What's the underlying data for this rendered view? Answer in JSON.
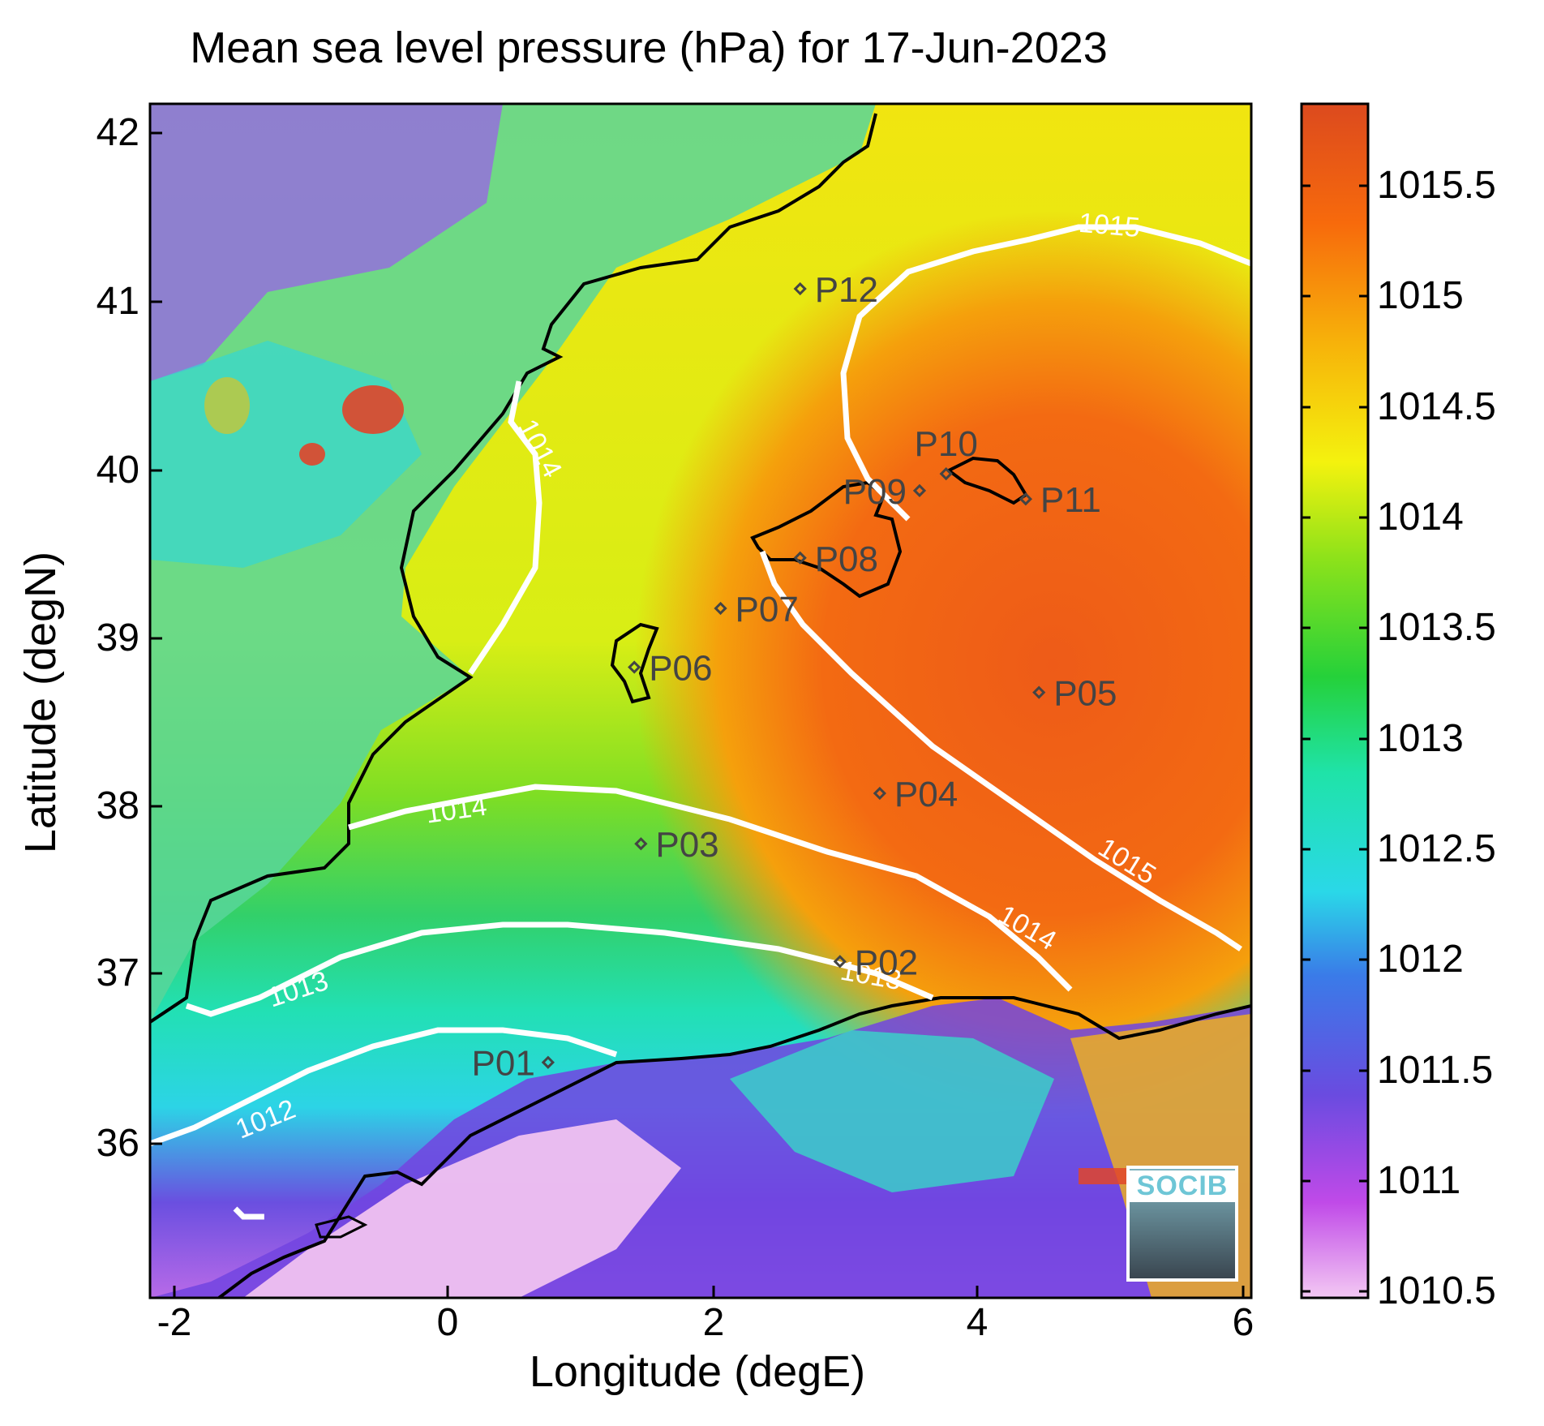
{
  "title": "Mean sea level pressure (hPa) for 17-Jun-2023",
  "xlabel": "Longitude (degE)",
  "ylabel": "Latitude (degN)",
  "x_ticks": [
    "-2",
    "0",
    "2",
    "4",
    "6"
  ],
  "y_ticks": [
    "42",
    "41",
    "40",
    "39",
    "38",
    "37",
    "36"
  ],
  "colorbar_ticks": [
    "1015.5",
    "1015",
    "1014.5",
    "1014",
    "1013.5",
    "1013",
    "1012.5",
    "1012",
    "1011.5",
    "1011",
    "1010.5"
  ],
  "logo_text": "SOCIB",
  "colors": {
    "contour": "#ffffff",
    "coast": "#000000",
    "station": "#444444",
    "scale": [
      "#f3c8f3",
      "#c04ae8",
      "#6a4be0",
      "#3a7be8",
      "#2ad8e8",
      "#1fe3a8",
      "#25d13a",
      "#8ee21a",
      "#f4f20e",
      "#f7b20a",
      "#f76a0c",
      "#dc4a1e"
    ]
  },
  "chart_data": {
    "type": "heatmap",
    "title": "Mean sea level pressure (hPa) for 17-Jun-2023",
    "xlabel": "Longitude (degE)",
    "ylabel": "Latitude (degN)",
    "xlim": [
      -2.2,
      6.1
    ],
    "ylim": [
      35.1,
      42.2
    ],
    "colorbar": {
      "min": 1010.5,
      "max": 1015.9
    },
    "contour_levels": [
      1012,
      1013,
      1014,
      1015
    ],
    "stations": [
      {
        "name": "P01",
        "lon": 0.8,
        "lat": 36.5
      },
      {
        "name": "P02",
        "lon": 3.0,
        "lat": 37.1
      },
      {
        "name": "P03",
        "lon": 1.5,
        "lat": 37.8
      },
      {
        "name": "P04",
        "lon": 3.3,
        "lat": 38.1
      },
      {
        "name": "P05",
        "lon": 4.5,
        "lat": 38.7
      },
      {
        "name": "P06",
        "lon": 1.45,
        "lat": 38.85
      },
      {
        "name": "P07",
        "lon": 2.1,
        "lat": 39.2
      },
      {
        "name": "P08",
        "lon": 2.7,
        "lat": 39.5
      },
      {
        "name": "P09",
        "lon": 3.6,
        "lat": 39.9
      },
      {
        "name": "P10",
        "lon": 3.8,
        "lat": 40.0
      },
      {
        "name": "P11",
        "lon": 4.4,
        "lat": 39.85
      },
      {
        "name": "P12",
        "lon": 2.7,
        "lat": 41.1
      }
    ]
  }
}
